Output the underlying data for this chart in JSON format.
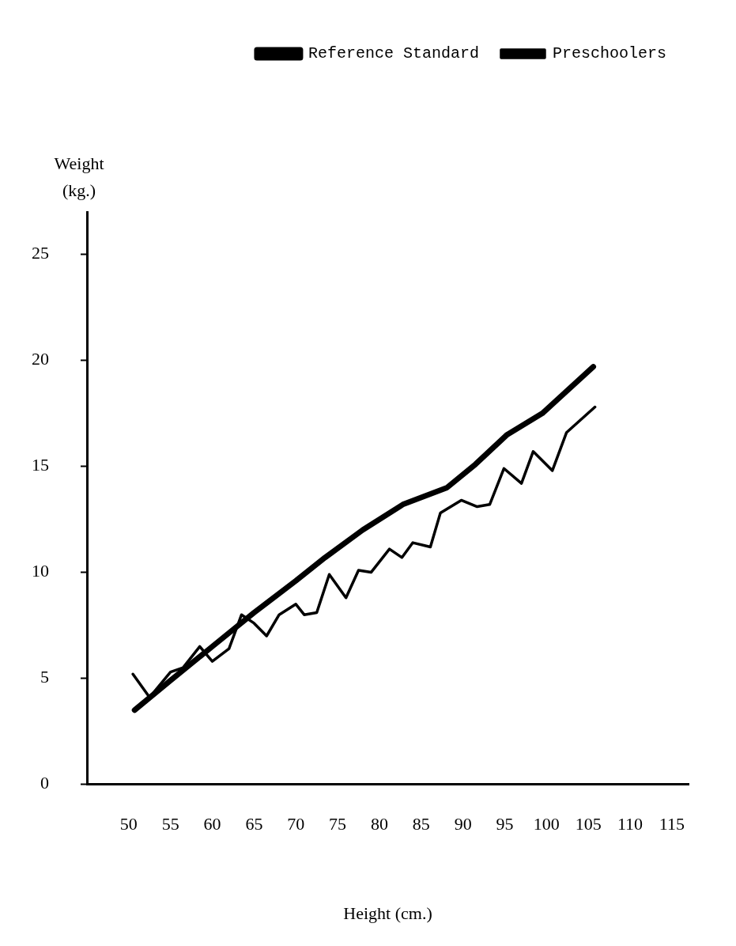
{
  "chart_data": {
    "type": "line",
    "xlabel": "Height (cm.)",
    "ylabel": "Weight (kg.)",
    "xlim": [
      45,
      117
    ],
    "xticks": [
      50,
      55,
      60,
      65,
      70,
      75,
      80,
      85,
      90,
      95,
      100,
      105,
      110,
      115
    ],
    "ylim": [
      0,
      27
    ],
    "yticks": [
      0,
      5,
      10,
      15,
      20,
      25
    ],
    "grid": false,
    "legend": "top right",
    "marker": "none",
    "line_style": "solid",
    "series": [
      {
        "name": "Reference Standard",
        "color": "#000000",
        "x": [
          50.7,
          55,
          60,
          65,
          70,
          73.5,
          78,
          82.8,
          88.1,
          91.5,
          95.3,
          99.5,
          105.6
        ],
        "values": [
          3.5,
          4.9,
          6.5,
          8.1,
          9.6,
          10.7,
          12,
          13.2,
          14,
          15.1,
          16.5,
          17.5,
          19.7
        ]
      },
      {
        "name": "Preschoolers",
        "color": "#000000",
        "x": [
          50.5,
          52.5,
          55,
          56.5,
          58.5,
          60,
          62,
          63.5,
          65,
          66.5,
          68,
          70,
          71,
          72.5,
          74,
          76,
          77.5,
          79,
          80.4,
          81.2,
          82.7,
          84,
          86.1,
          87.3,
          89.8,
          91.7,
          93.2,
          94.9,
          97,
          98.4,
          100.7,
          102.4,
          105.8
        ],
        "values": [
          5.2,
          4.1,
          5.3,
          5.5,
          6.5,
          5.8,
          6.4,
          8,
          7.6,
          7,
          8,
          8.5,
          8,
          8.1,
          9.9,
          8.8,
          10.1,
          10,
          10.7,
          11.1,
          10.7,
          11.4,
          11.2,
          12.8,
          13.4,
          13.1,
          13.2,
          14.9,
          14.2,
          15.7,
          14.8,
          16.6,
          17.8
        ]
      }
    ]
  }
}
